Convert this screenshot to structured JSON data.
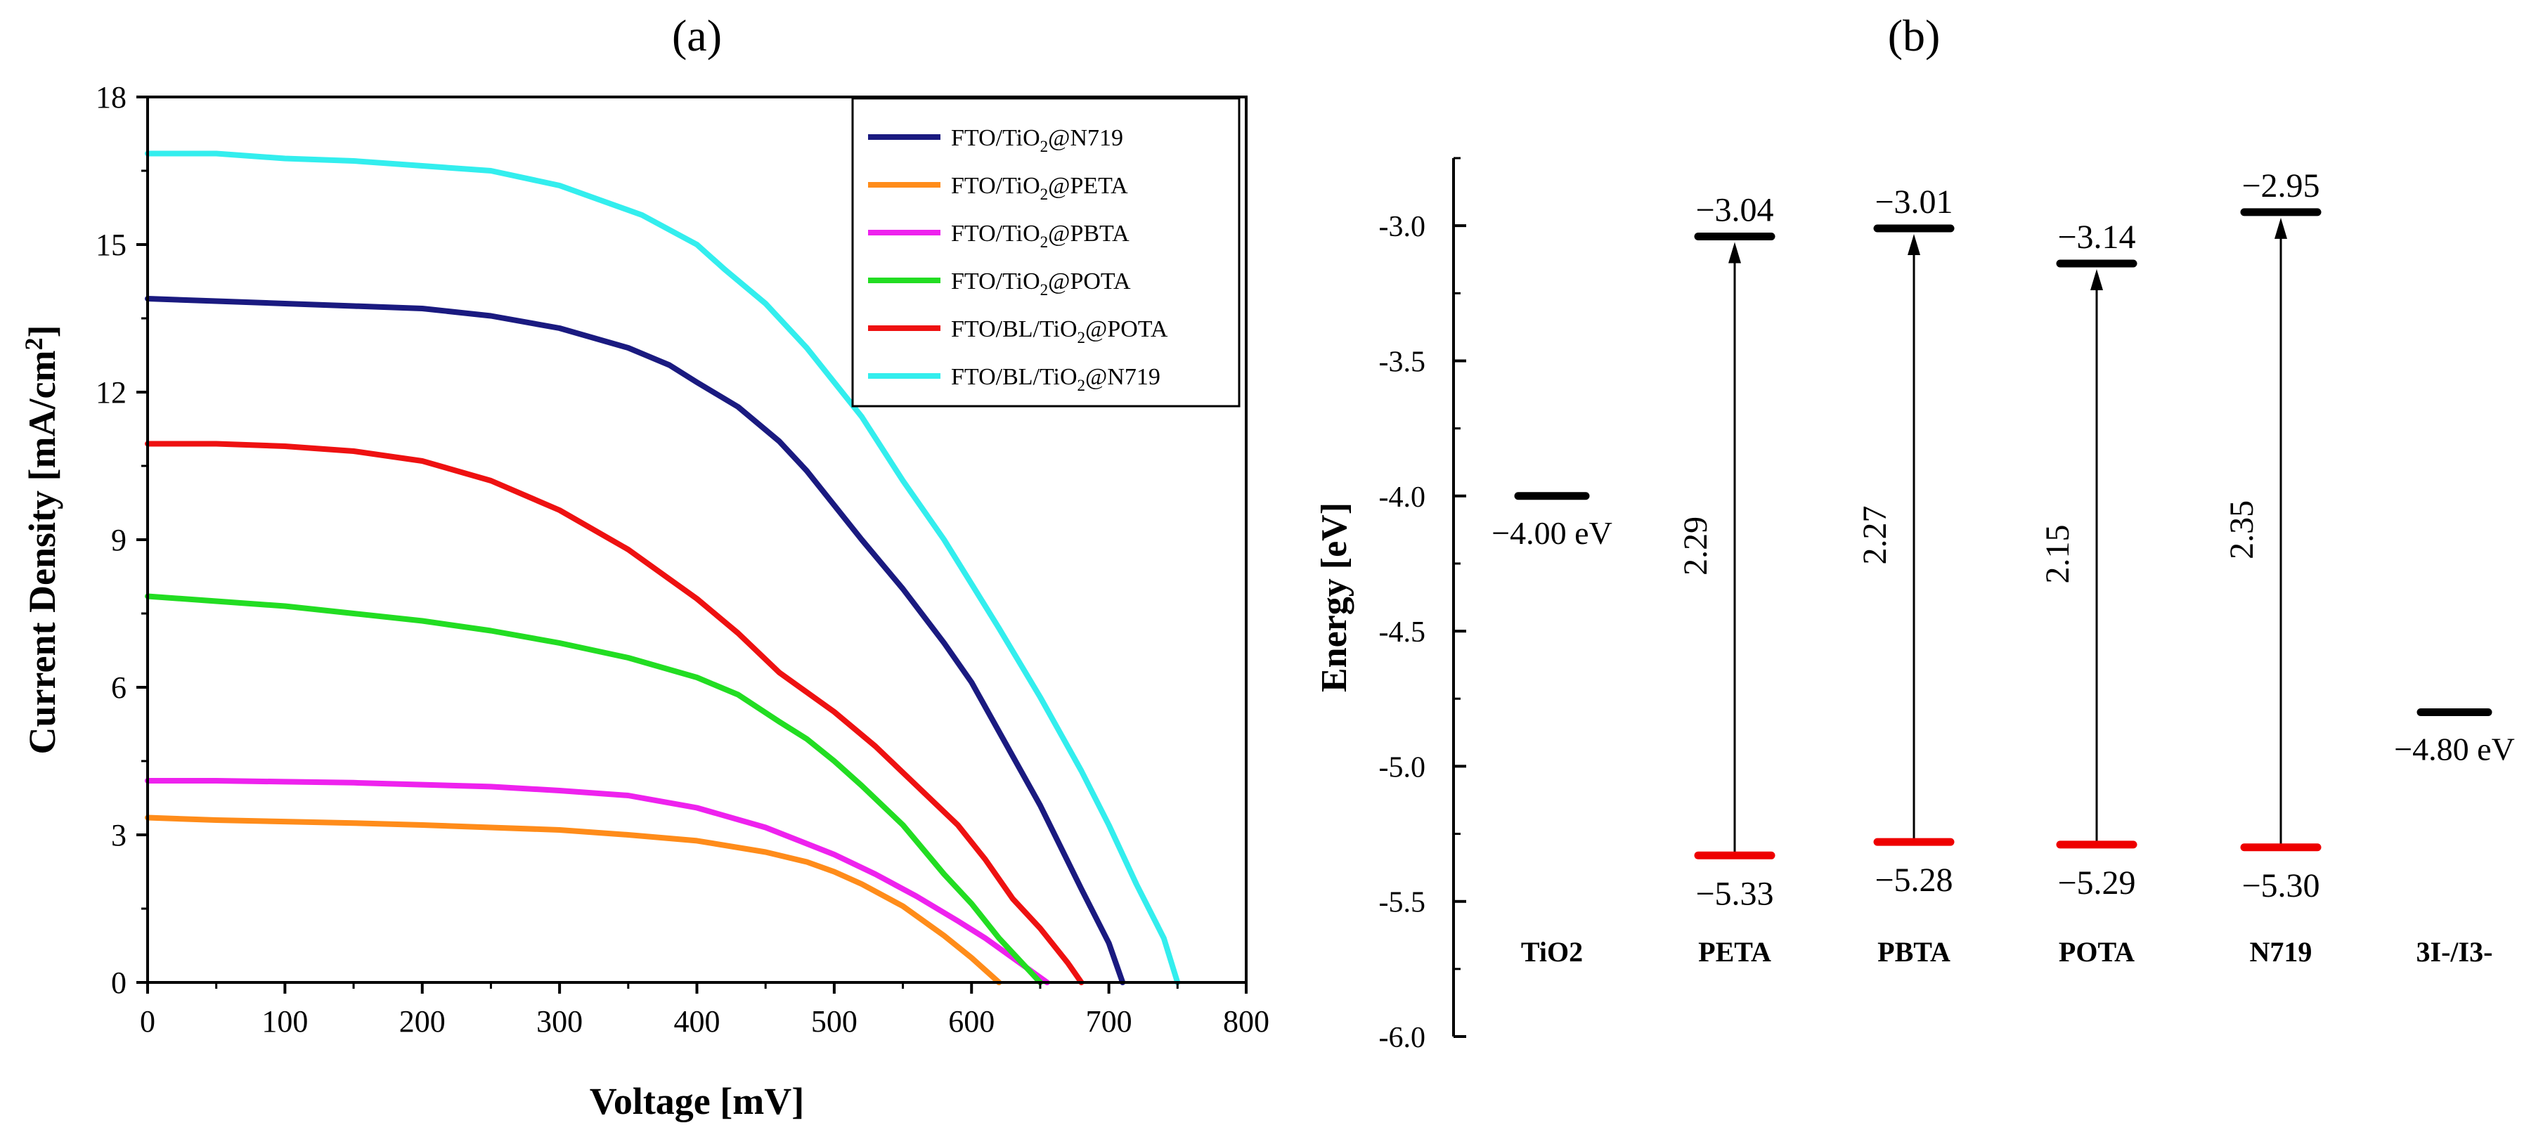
{
  "chart_data": [
    {
      "panel_label": "(a)",
      "type": "line",
      "xlabel": "Voltage [mV]",
      "ylabel_main": "Current Density [mA/cm",
      "ylabel_sup": "2",
      "ylabel_end": "]",
      "xlim": [
        0,
        800
      ],
      "ylim": [
        0,
        18
      ],
      "xticks": [
        "0",
        "100",
        "200",
        "300",
        "400",
        "500",
        "600",
        "700",
        "800"
      ],
      "yticks": [
        "0",
        "3",
        "6",
        "9",
        "12",
        "15",
        "18"
      ],
      "legend_position": "top-right",
      "series": [
        {
          "name": "FTO/TiO2@N719",
          "legend_parts": [
            "FTO/TiO",
            "2",
            "@N719"
          ],
          "color": "#1a1a80",
          "x": [
            0,
            50,
            100,
            150,
            200,
            250,
            300,
            350,
            380,
            400,
            430,
            460,
            480,
            500,
            520,
            550,
            580,
            600,
            620,
            650,
            680,
            700,
            710
          ],
          "y": [
            13.9,
            13.85,
            13.8,
            13.75,
            13.7,
            13.55,
            13.3,
            12.9,
            12.55,
            12.2,
            11.7,
            11.0,
            10.4,
            9.7,
            9.0,
            8.0,
            6.9,
            6.1,
            5.1,
            3.6,
            1.9,
            0.8,
            0
          ]
        },
        {
          "name": "FTO/TiO2@PETA",
          "legend_parts": [
            "FTO/TiO",
            "2",
            "@PETA"
          ],
          "color": "#ff8c1a",
          "x": [
            0,
            50,
            100,
            150,
            200,
            250,
            300,
            350,
            400,
            450,
            480,
            500,
            520,
            550,
            580,
            600,
            610,
            620
          ],
          "y": [
            3.35,
            3.3,
            3.27,
            3.24,
            3.2,
            3.15,
            3.1,
            3.0,
            2.88,
            2.65,
            2.45,
            2.25,
            2.0,
            1.55,
            0.95,
            0.5,
            0.25,
            0
          ]
        },
        {
          "name": "FTO/TiO2@PBTA",
          "legend_parts": [
            "FTO/TiO",
            "2",
            "@PBTA"
          ],
          "color": "#ee22ee",
          "x": [
            0,
            50,
            100,
            150,
            200,
            250,
            300,
            350,
            400,
            450,
            500,
            530,
            560,
            590,
            610,
            630,
            645,
            655
          ],
          "y": [
            4.1,
            4.1,
            4.08,
            4.06,
            4.02,
            3.98,
            3.9,
            3.8,
            3.55,
            3.15,
            2.6,
            2.2,
            1.75,
            1.25,
            0.9,
            0.5,
            0.2,
            0
          ]
        },
        {
          "name": "FTO/TiO2@POTA",
          "legend_parts": [
            "FTO/TiO",
            "2",
            "@POTA"
          ],
          "color": "#22dd22",
          "x": [
            0,
            50,
            100,
            150,
            200,
            250,
            300,
            350,
            400,
            430,
            460,
            480,
            500,
            520,
            550,
            580,
            600,
            620,
            640,
            650
          ],
          "y": [
            7.85,
            7.75,
            7.65,
            7.5,
            7.35,
            7.15,
            6.9,
            6.6,
            6.2,
            5.85,
            5.3,
            4.95,
            4.5,
            4.0,
            3.2,
            2.2,
            1.6,
            0.9,
            0.3,
            0
          ]
        },
        {
          "name": "FTO/BL/TiO2@POTA",
          "legend_parts": [
            "FTO/BL/TiO",
            "2",
            "@POTA"
          ],
          "color": "#ee1111",
          "x": [
            0,
            50,
            100,
            150,
            200,
            250,
            300,
            350,
            380,
            400,
            430,
            460,
            500,
            530,
            560,
            590,
            610,
            630,
            650,
            670,
            680
          ],
          "y": [
            10.95,
            10.95,
            10.9,
            10.8,
            10.6,
            10.2,
            9.6,
            8.8,
            8.2,
            7.8,
            7.1,
            6.3,
            5.5,
            4.8,
            4.0,
            3.2,
            2.5,
            1.7,
            1.1,
            0.4,
            0
          ]
        },
        {
          "name": "FTO/BL/TiO2@N719",
          "legend_parts": [
            "FTO/BL/TiO",
            "2",
            "@N719"
          ],
          "color": "#33eeee",
          "x": [
            0,
            50,
            100,
            150,
            200,
            250,
            300,
            330,
            360,
            380,
            400,
            420,
            450,
            480,
            500,
            520,
            550,
            580,
            600,
            620,
            650,
            680,
            700,
            720,
            740,
            750
          ],
          "y": [
            16.85,
            16.85,
            16.75,
            16.7,
            16.6,
            16.5,
            16.2,
            15.9,
            15.6,
            15.3,
            15.0,
            14.5,
            13.8,
            12.9,
            12.2,
            11.5,
            10.2,
            9.0,
            8.1,
            7.2,
            5.8,
            4.3,
            3.2,
            2.0,
            0.9,
            0
          ]
        }
      ]
    },
    {
      "panel_label": "(b)",
      "type": "energy-level diagram",
      "ylabel": "Energy [eV]",
      "ylim": [
        -6.0,
        -2.75
      ],
      "yticks": [
        "-6.0",
        "-5.5",
        "-5.0",
        "-4.5",
        "-4.0",
        "-3.5",
        "-3.0"
      ],
      "levels_color": "#000000",
      "homo_color": "#ee0000",
      "arrow_color": "#000000",
      "categories": [
        "TiO2",
        "PETA",
        "PBTA",
        "POTA",
        "N719",
        "3I-/I3-"
      ],
      "single_levels": [
        {
          "category": "TiO2",
          "value": -4.0,
          "label": "−4.00 eV"
        },
        {
          "category": "3I-/I3-",
          "value": -4.8,
          "label": "−4.80 eV"
        }
      ],
      "dyes": [
        {
          "category": "PETA",
          "lumo": -3.04,
          "homo": -5.33,
          "lumo_label": "−3.04",
          "homo_label": "−5.33",
          "gap_label": "2.29"
        },
        {
          "category": "PBTA",
          "lumo": -3.01,
          "homo": -5.28,
          "lumo_label": "−3.01",
          "homo_label": "−5.28",
          "gap_label": "2.27"
        },
        {
          "category": "POTA",
          "lumo": -3.14,
          "homo": -5.29,
          "lumo_label": "−3.14",
          "homo_label": "−5.29",
          "gap_label": "2.15"
        },
        {
          "category": "N719",
          "lumo": -2.95,
          "homo": -5.3,
          "lumo_label": "−2.95",
          "homo_label": "−5.30",
          "gap_label": "2.35"
        }
      ]
    }
  ]
}
